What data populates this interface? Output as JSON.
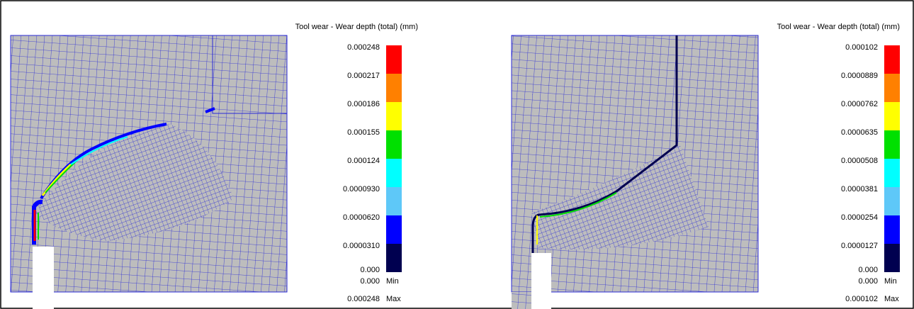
{
  "panels": [
    {
      "legend_title": "Tool wear - Wear depth (total) (mm)",
      "scale_labels": [
        "0.000248",
        "0.000217",
        "0.000186",
        "0.000155",
        "0.000124",
        "0.0000930",
        "0.0000620",
        "0.0000310",
        "0.000"
      ],
      "min": {
        "value": "0.000",
        "label": "Min"
      },
      "max": {
        "value": "0.000248",
        "label": "Max"
      }
    },
    {
      "legend_title": "Tool wear - Wear depth (total) (mm)",
      "scale_labels": [
        "0.000102",
        "0.0000889",
        "0.0000762",
        "0.0000635",
        "0.0000508",
        "0.0000381",
        "0.0000254",
        "0.0000127",
        "0.000"
      ],
      "min": {
        "value": "0.000",
        "label": "Min"
      },
      "max": {
        "value": "0.000102",
        "label": "Max"
      }
    }
  ]
}
